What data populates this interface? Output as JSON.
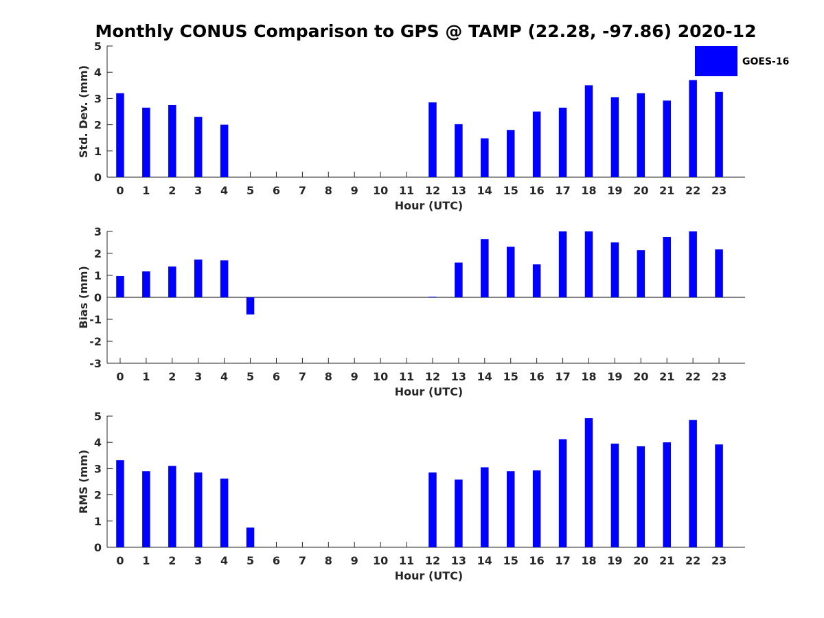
{
  "title": "Monthly CONUS Comparison to GPS @ TAMP (22.28, -97.86) 2020-12",
  "bar_color": "#0000ff",
  "legend": {
    "label": "GOES-16",
    "placement": "top-right"
  },
  "chart_data": [
    {
      "type": "bar",
      "xlabel": "Hour (UTC)",
      "ylabel": "Std. Dev. (mm)",
      "ylim": [
        0,
        5
      ],
      "yticks": [
        0,
        1,
        2,
        3,
        4,
        5
      ],
      "categories": [
        "0",
        "1",
        "2",
        "3",
        "4",
        "5",
        "6",
        "7",
        "8",
        "9",
        "10",
        "11",
        "12",
        "13",
        "14",
        "15",
        "16",
        "17",
        "18",
        "19",
        "20",
        "21",
        "22",
        "23"
      ],
      "series": [
        {
          "name": "GOES-16",
          "values": [
            3.2,
            2.65,
            2.75,
            2.3,
            2.0,
            null,
            null,
            null,
            null,
            null,
            null,
            null,
            2.85,
            2.02,
            1.48,
            1.8,
            2.5,
            2.65,
            3.5,
            3.05,
            3.2,
            2.92,
            3.7,
            3.25
          ]
        }
      ]
    },
    {
      "type": "bar",
      "xlabel": "Hour (UTC)",
      "ylabel": "Bias (mm)",
      "ylim": [
        -3,
        3
      ],
      "yticks": [
        -3,
        -2,
        -1,
        0,
        1,
        2,
        3
      ],
      "categories": [
        "0",
        "1",
        "2",
        "3",
        "4",
        "5",
        "6",
        "7",
        "8",
        "9",
        "10",
        "11",
        "12",
        "13",
        "14",
        "15",
        "16",
        "17",
        "18",
        "19",
        "20",
        "21",
        "22",
        "23"
      ],
      "series": [
        {
          "name": "GOES-16",
          "values": [
            0.97,
            1.18,
            1.4,
            1.72,
            1.68,
            -0.78,
            null,
            null,
            null,
            null,
            null,
            null,
            0.03,
            1.58,
            2.65,
            2.3,
            1.5,
            3.0,
            3.0,
            2.5,
            2.15,
            2.75,
            3.0,
            2.18
          ]
        }
      ]
    },
    {
      "type": "bar",
      "xlabel": "Hour (UTC)",
      "ylabel": "RMS (mm)",
      "ylim": [
        0,
        5
      ],
      "yticks": [
        0,
        1,
        2,
        3,
        4,
        5
      ],
      "categories": [
        "0",
        "1",
        "2",
        "3",
        "4",
        "5",
        "6",
        "7",
        "8",
        "9",
        "10",
        "11",
        "12",
        "13",
        "14",
        "15",
        "16",
        "17",
        "18",
        "19",
        "20",
        "21",
        "22",
        "23"
      ],
      "series": [
        {
          "name": "GOES-16",
          "values": [
            3.32,
            2.9,
            3.1,
            2.85,
            2.62,
            0.75,
            null,
            null,
            null,
            null,
            null,
            null,
            2.85,
            2.58,
            3.05,
            2.9,
            2.93,
            4.12,
            4.92,
            3.95,
            3.85,
            4.0,
            4.85,
            3.92
          ]
        }
      ]
    }
  ]
}
